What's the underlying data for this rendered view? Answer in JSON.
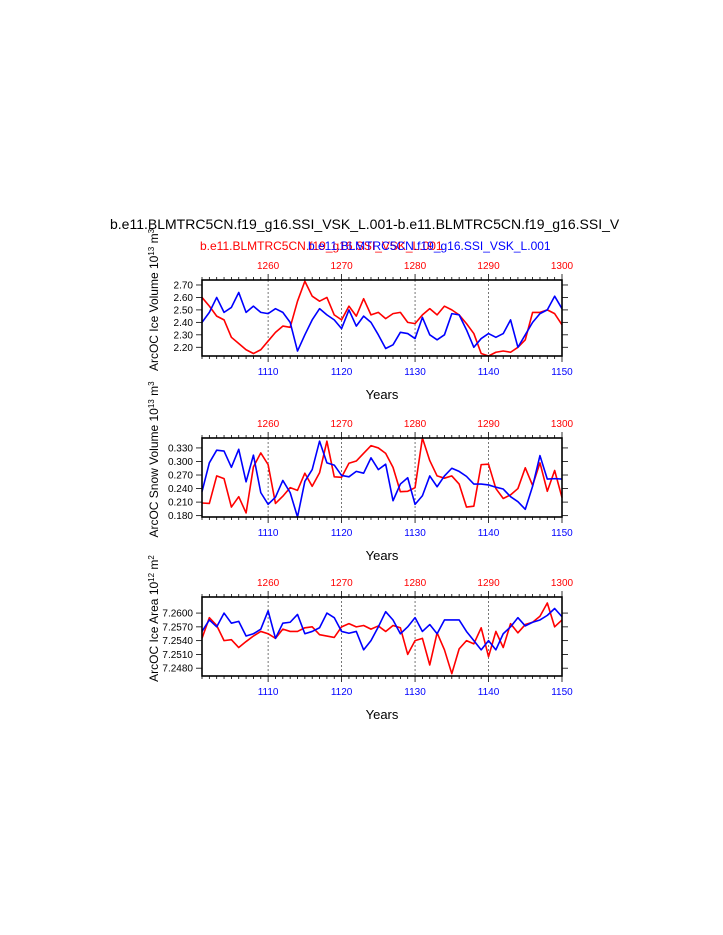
{
  "header": {
    "title": "b.e11.BLMTRC5CN.f19_g16.SSI_VSK_L.001-b.e11.BLMTRC5CN.f19_g16.SSI_V",
    "subtitle_red": "b.e11.BLMTRC5CN.f19_g16.SSI_VSK_L.001",
    "subtitle_blue": "b.e11.BLMTRC5CN.f19_g16.SSI_VSK_L.001"
  },
  "colors": {
    "red": "#ff0000",
    "blue": "#0000ff",
    "axis": "#000000"
  },
  "chart_data": [
    {
      "type": "line",
      "ylabel": "ArcOC Ice Volume",
      "yunit": "10^13 m^3",
      "xlabel": "Years",
      "x_bottom": {
        "range": [
          1101,
          1150
        ],
        "ticks": [
          1110,
          1120,
          1130,
          1140,
          1150
        ]
      },
      "x_top": {
        "range": [
          1251,
          1300
        ],
        "ticks": [
          1260,
          1270,
          1280,
          1290,
          1300
        ]
      },
      "ylim": [
        2.13,
        2.74
      ],
      "yticks": [
        "2.20",
        "2.30",
        "2.40",
        "2.50",
        "2.60",
        "2.70"
      ],
      "series": [
        {
          "color": "red",
          "axis": "top",
          "values": [
            2.6,
            2.53,
            2.45,
            2.42,
            2.28,
            2.23,
            2.18,
            2.15,
            2.18,
            2.25,
            2.32,
            2.37,
            2.36,
            2.57,
            2.73,
            2.61,
            2.57,
            2.6,
            2.46,
            2.42,
            2.53,
            2.45,
            2.59,
            2.46,
            2.48,
            2.43,
            2.47,
            2.48,
            2.4,
            2.39,
            2.46,
            2.51,
            2.46,
            2.53,
            2.5,
            2.46,
            2.39,
            2.31,
            2.15,
            2.13,
            2.16,
            2.17,
            2.16,
            2.2,
            2.26,
            2.48,
            2.48,
            2.5,
            2.47,
            2.38
          ]
        },
        {
          "color": "blue",
          "axis": "bottom",
          "values": [
            2.4,
            2.48,
            2.6,
            2.48,
            2.52,
            2.64,
            2.48,
            2.53,
            2.48,
            2.47,
            2.51,
            2.48,
            2.4,
            2.17,
            2.3,
            2.42,
            2.51,
            2.46,
            2.42,
            2.35,
            2.5,
            2.37,
            2.45,
            2.4,
            2.3,
            2.19,
            2.22,
            2.32,
            2.31,
            2.27,
            2.44,
            2.3,
            2.26,
            2.3,
            2.47,
            2.46,
            2.34,
            2.2,
            2.27,
            2.31,
            2.28,
            2.31,
            2.42,
            2.2,
            2.3,
            2.4,
            2.47,
            2.5,
            2.61,
            2.51
          ]
        }
      ]
    },
    {
      "type": "line",
      "ylabel": "ArcOC Snow Volume",
      "yunit": "10^13 m^3",
      "xlabel": "Years",
      "x_bottom": {
        "range": [
          1101,
          1150
        ],
        "ticks": [
          1110,
          1120,
          1130,
          1140,
          1150
        ]
      },
      "x_top": {
        "range": [
          1251,
          1300
        ],
        "ticks": [
          1260,
          1270,
          1280,
          1290,
          1300
        ]
      },
      "ylim": [
        0.177,
        0.352
      ],
      "yticks": [
        "0.180",
        "0.210",
        "0.240",
        "0.270",
        "0.300",
        "0.330"
      ],
      "series": [
        {
          "color": "red",
          "axis": "top",
          "values": [
            0.208,
            0.207,
            0.268,
            0.262,
            0.199,
            0.222,
            0.186,
            0.288,
            0.319,
            0.293,
            0.207,
            0.223,
            0.242,
            0.236,
            0.274,
            0.245,
            0.275,
            0.345,
            0.266,
            0.265,
            0.296,
            0.301,
            0.318,
            0.335,
            0.33,
            0.318,
            0.287,
            0.233,
            0.234,
            0.242,
            0.352,
            0.302,
            0.268,
            0.263,
            0.268,
            0.25,
            0.199,
            0.201,
            0.293,
            0.294,
            0.24,
            0.218,
            0.226,
            0.24,
            0.286,
            0.247,
            0.297,
            0.234,
            0.28,
            0.22
          ]
        },
        {
          "color": "blue",
          "axis": "bottom",
          "values": [
            0.233,
            0.297,
            0.325,
            0.323,
            0.287,
            0.327,
            0.255,
            0.314,
            0.231,
            0.205,
            0.221,
            0.258,
            0.231,
            0.177,
            0.256,
            0.282,
            0.345,
            0.297,
            0.292,
            0.269,
            0.266,
            0.278,
            0.274,
            0.308,
            0.282,
            0.294,
            0.213,
            0.25,
            0.264,
            0.205,
            0.224,
            0.268,
            0.244,
            0.268,
            0.285,
            0.278,
            0.267,
            0.25,
            0.25,
            0.248,
            0.243,
            0.239,
            0.222,
            0.211,
            0.194,
            0.245,
            0.313,
            0.261,
            0.262,
            0.261
          ]
        }
      ]
    },
    {
      "type": "line",
      "ylabel": "ArcOC Ice Area",
      "yunit": "10^12 m^2",
      "xlabel": "Years",
      "x_bottom": {
        "range": [
          1101,
          1150
        ],
        "ticks": [
          1110,
          1120,
          1130,
          1140,
          1150
        ]
      },
      "x_top": {
        "range": [
          1251,
          1300
        ],
        "ticks": [
          1260,
          1270,
          1280,
          1290,
          1300
        ]
      },
      "ylim": [
        7.2463,
        7.2635
      ],
      "yticks": [
        "7.2480",
        "7.2510",
        "7.2540",
        "7.2570",
        "7.2600"
      ],
      "series": [
        {
          "color": "red",
          "axis": "top",
          "values": [
            7.2545,
            7.259,
            7.2573,
            7.254,
            7.2542,
            7.2525,
            7.2538,
            7.255,
            7.256,
            7.2555,
            7.2545,
            7.2565,
            7.256,
            7.256,
            7.2568,
            7.257,
            7.2553,
            7.255,
            7.2547,
            7.257,
            7.2577,
            7.257,
            7.2573,
            7.2565,
            7.2572,
            7.256,
            7.2573,
            7.2568,
            7.251,
            7.254,
            7.2545,
            7.2487,
            7.2557,
            7.252,
            7.2468,
            7.2522,
            7.254,
            7.2533,
            7.2568,
            7.2505,
            7.256,
            7.2525,
            7.2577,
            7.2557,
            7.2575,
            7.258,
            7.2593,
            7.2622,
            7.257,
            7.2585
          ]
        },
        {
          "color": "blue",
          "axis": "bottom",
          "values": [
            7.256,
            7.2585,
            7.257,
            7.26,
            7.2578,
            7.2582,
            7.255,
            7.2555,
            7.2565,
            7.2605,
            7.2545,
            7.2578,
            7.258,
            7.2597,
            7.2555,
            7.256,
            7.2568,
            7.26,
            7.259,
            7.256,
            7.2556,
            7.256,
            7.252,
            7.254,
            7.257,
            7.2603,
            7.2585,
            7.2555,
            7.257,
            7.259,
            7.256,
            7.2575,
            7.2555,
            7.2585,
            7.2585,
            7.2585,
            7.256,
            7.254,
            7.252,
            7.254,
            7.252,
            7.2555,
            7.257,
            7.259,
            7.2572,
            7.258,
            7.2585,
            7.2595,
            7.261,
            7.2592
          ]
        }
      ]
    }
  ]
}
